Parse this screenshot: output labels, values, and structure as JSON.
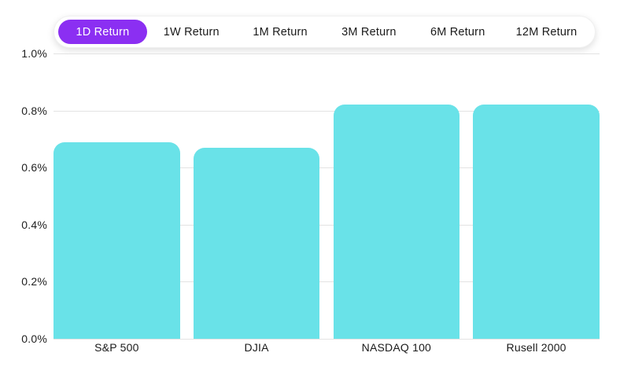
{
  "tabs": {
    "items": [
      {
        "label": "1D Return",
        "selected": true
      },
      {
        "label": "1W Return",
        "selected": false
      },
      {
        "label": "1M Return",
        "selected": false
      },
      {
        "label": "3M Return",
        "selected": false
      },
      {
        "label": "6M Return",
        "selected": false
      },
      {
        "label": "12M Return",
        "selected": false
      }
    ]
  },
  "colors": {
    "accent_purple": "#8b2ff2",
    "bar_teal": "#69e2e8",
    "gridline": "#e3e3e3",
    "text_dark": "#1a1a1a"
  },
  "chart_data": {
    "type": "bar",
    "categories": [
      "S&P 500",
      "DJIA",
      "NASDAQ 100",
      "Rusell 2000"
    ],
    "values": [
      0.69,
      0.67,
      0.82,
      0.82
    ],
    "series_name": "1D Return",
    "title": "",
    "xlabel": "",
    "ylabel": "",
    "ylim": [
      0,
      1.0
    ],
    "yticks": [
      0.0,
      0.2,
      0.4,
      0.6,
      0.8,
      1.0
    ],
    "ytick_labels": [
      "0.0%",
      "0.2%",
      "0.4%",
      "0.6%",
      "0.8%",
      "1.0%"
    ],
    "grid": true,
    "legend": false
  }
}
